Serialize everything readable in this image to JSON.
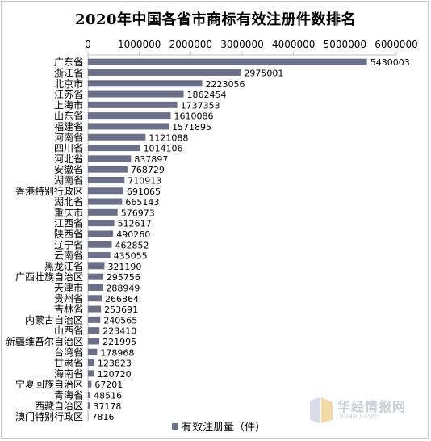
{
  "colors": {
    "bar": "#6b6f87",
    "axis": "#bfbfbf"
  },
  "watermark": {
    "name": "华经情报网",
    "url": "huaon.com",
    "logo": "huaon-logo-icon"
  },
  "chart_data": {
    "type": "bar",
    "orientation": "horizontal",
    "title": "2020年中国各省市商标有效注册件数排名",
    "xlim": [
      0,
      6000000
    ],
    "x_ticks": [
      "0",
      "1000000",
      "2000000",
      "3000000",
      "4000000",
      "5000000",
      "6000000"
    ],
    "x_tick_values": [
      0,
      1000000,
      2000000,
      3000000,
      4000000,
      5000000,
      6000000
    ],
    "x_axis_position": "top",
    "grid": false,
    "legend": "bottom",
    "categories": [
      "广东省",
      "浙江省",
      "北京市",
      "江苏省",
      "上海市",
      "山东省",
      "福建省",
      "河南省",
      "四川省",
      "河北省",
      "安徽省",
      "湖南省",
      "香港特别行政区",
      "湖北省",
      "重庆市",
      "江西省",
      "陕西省",
      "辽宁省",
      "云南省",
      "黑龙江省",
      "广西壮族自治区",
      "天津市",
      "贵州省",
      "吉林省",
      "内蒙古自治区",
      "山西省",
      "新疆维吾尔自治区",
      "台湾省",
      "甘肃省",
      "海南省",
      "宁夏回族自治区",
      "青海省",
      "西藏自治区",
      "澳门特别行政区"
    ],
    "series": [
      {
        "name": "有效注册量（件）",
        "values": [
          5430003,
          2975001,
          2223056,
          1862454,
          1737353,
          1610086,
          1571895,
          1121088,
          1014106,
          837897,
          768729,
          710913,
          691065,
          665143,
          576973,
          512617,
          490260,
          462852,
          435055,
          321190,
          295756,
          288949,
          266864,
          253691,
          240565,
          223410,
          221995,
          178968,
          123823,
          120720,
          67201,
          48516,
          37178,
          7816
        ]
      }
    ]
  }
}
